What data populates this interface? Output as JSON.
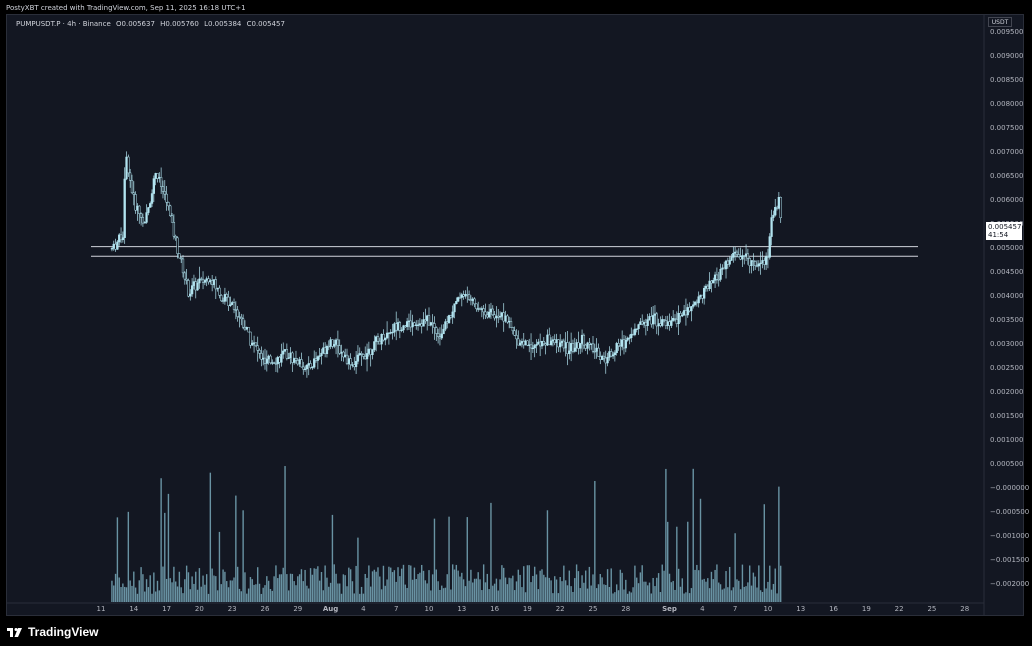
{
  "header": {
    "attribution": "PostyXBT created with TradingView.com, Sep 11, 2025 16:18 UTC+1"
  },
  "legend": {
    "symbol": "PUMPUSDT.P · 4h · Binance",
    "open": "O0.005637",
    "high": "H0.005760",
    "low": "L0.005384",
    "close": "C0.005457"
  },
  "price_axis": {
    "currency": "USDT",
    "labels": [
      "0.009500",
      "0.009000",
      "0.008500",
      "0.008000",
      "0.007500",
      "0.007000",
      "0.006500",
      "0.006000",
      "0.005500",
      "0.005000",
      "0.004500",
      "0.004000",
      "0.003500",
      "0.003000",
      "0.002500",
      "0.002000",
      "0.001500",
      "0.001000",
      "0.000500",
      "−0.000000",
      "−0.000500",
      "−0.001000",
      "−0.001500",
      "−0.002000"
    ],
    "current_price": "0.005457",
    "countdown": "41:54"
  },
  "time_axis": {
    "labels": [
      "11",
      "14",
      "17",
      "20",
      "23",
      "26",
      "29",
      "Aug",
      "4",
      "7",
      "10",
      "13",
      "16",
      "19",
      "22",
      "25",
      "28",
      "Sep",
      "4",
      "7",
      "10",
      "13",
      "16",
      "19",
      "22",
      "25",
      "28"
    ]
  },
  "footer": {
    "brand": "TradingView"
  },
  "colors": {
    "background": "#131722",
    "candle": "#b2e4f0",
    "volume": "#7fb3c4",
    "level_line": "#d1d4dc",
    "text": "#b2b5be"
  },
  "chart_data": {
    "type": "candlestick",
    "symbol": "PUMPUSDT.P",
    "timeframe": "4h",
    "exchange": "Binance",
    "x_range": [
      "2025-07-10",
      "2025-09-28"
    ],
    "y_range": [
      -0.0022,
      0.0098
    ],
    "horizontal_levels": [
      0.00505,
      0.00485
    ],
    "price_path": [
      {
        "date": "2025-07-12",
        "price": 0.005
      },
      {
        "date": "2025-07-13",
        "price": 0.0053
      },
      {
        "date": "2025-07-13",
        "price": 0.007
      },
      {
        "date": "2025-07-14",
        "price": 0.006
      },
      {
        "date": "2025-07-15",
        "price": 0.0055
      },
      {
        "date": "2025-07-16",
        "price": 0.0066
      },
      {
        "date": "2025-07-17",
        "price": 0.006
      },
      {
        "date": "2025-07-18",
        "price": 0.005
      },
      {
        "date": "2025-07-19",
        "price": 0.0041
      },
      {
        "date": "2025-07-20",
        "price": 0.0043
      },
      {
        "date": "2025-07-21",
        "price": 0.0044
      },
      {
        "date": "2025-07-22",
        "price": 0.004
      },
      {
        "date": "2025-07-23",
        "price": 0.0039
      },
      {
        "date": "2025-07-25",
        "price": 0.003
      },
      {
        "date": "2025-07-26",
        "price": 0.0026
      },
      {
        "date": "2025-07-28",
        "price": 0.0028
      },
      {
        "date": "2025-07-30",
        "price": 0.0025
      },
      {
        "date": "2025-08-01",
        "price": 0.0031
      },
      {
        "date": "2025-08-03",
        "price": 0.0026
      },
      {
        "date": "2025-08-05",
        "price": 0.003
      },
      {
        "date": "2025-08-07",
        "price": 0.0034
      },
      {
        "date": "2025-08-10",
        "price": 0.0035
      },
      {
        "date": "2025-08-11",
        "price": 0.0032
      },
      {
        "date": "2025-08-13",
        "price": 0.0041
      },
      {
        "date": "2025-08-15",
        "price": 0.0037
      },
      {
        "date": "2025-08-17",
        "price": 0.0036
      },
      {
        "date": "2025-08-18",
        "price": 0.0031
      },
      {
        "date": "2025-08-20",
        "price": 0.003
      },
      {
        "date": "2025-08-21",
        "price": 0.0031
      },
      {
        "date": "2025-08-23",
        "price": 0.0029
      },
      {
        "date": "2025-08-24",
        "price": 0.0031
      },
      {
        "date": "2025-08-26",
        "price": 0.0027
      },
      {
        "date": "2025-08-28",
        "price": 0.0031
      },
      {
        "date": "2025-08-30",
        "price": 0.0036
      },
      {
        "date": "2025-09-01",
        "price": 0.0034
      },
      {
        "date": "2025-09-03",
        "price": 0.0038
      },
      {
        "date": "2025-09-05",
        "price": 0.0043
      },
      {
        "date": "2025-09-07",
        "price": 0.0049
      },
      {
        "date": "2025-09-09",
        "price": 0.0047
      },
      {
        "date": "2025-09-10",
        "price": 0.0048
      },
      {
        "date": "2025-09-10",
        "price": 0.0056
      },
      {
        "date": "2025-09-11",
        "price": 0.006
      },
      {
        "date": "2025-09-11",
        "price": 0.0055
      }
    ]
  }
}
